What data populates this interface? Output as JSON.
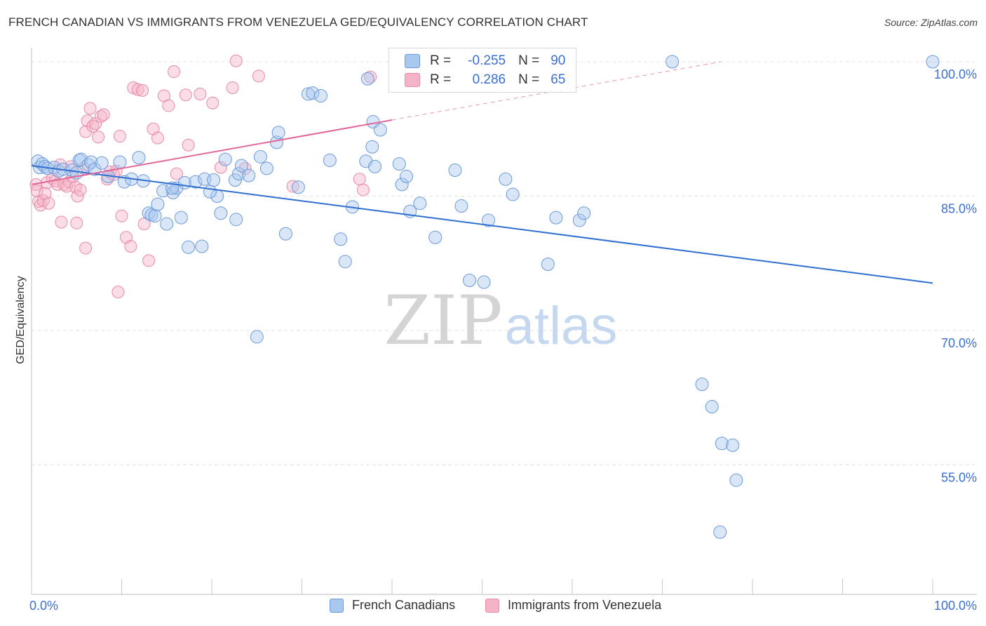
{
  "title": "FRENCH CANADIAN VS IMMIGRANTS FROM VENEZUELA GED/EQUIVALENCY CORRELATION CHART",
  "source": "Source: ZipAtlas.com",
  "watermark": {
    "zip": "ZIP",
    "atlas": "atlas"
  },
  "legend": {
    "rows": [
      {
        "r_label": "R =",
        "r_value": "-0.255",
        "n_label": "N =",
        "n_value": "90"
      },
      {
        "r_label": "R =",
        "r_value": "0.286",
        "n_label": "N =",
        "n_value": "65"
      }
    ]
  },
  "bottom_legend": [
    "French Canadians",
    "Immigrants from Venezuela"
  ],
  "colors": {
    "blue_fill": "#a9c8f0",
    "blue_stroke": "#6b9ad8",
    "blue_line": "#2f6fd1",
    "pink_fill": "#f5b3c8",
    "pink_stroke": "#e98aa8",
    "pink_line": "#e0689a",
    "tick_label": "#3b6fd4"
  },
  "chart_data": {
    "type": "scatter",
    "title": "FRENCH CANADIAN VS IMMIGRANTS FROM VENEZUELA GED/EQUIVALENCY CORRELATION CHART",
    "xlabel": "",
    "ylabel": "GED/Equivalency",
    "xlim": [
      0,
      100
    ],
    "ylim": [
      40,
      101.5
    ],
    "x_tick_labels": [
      "0.0%",
      "100.0%"
    ],
    "y_ticks": [
      55,
      70,
      85,
      100
    ],
    "y_tick_labels": [
      "55.0%",
      "70.0%",
      "85.0%",
      "100.0%"
    ],
    "series": [
      {
        "name": "French Canadians",
        "r": -0.255,
        "n": 90,
        "trend": {
          "x": [
            0,
            100
          ],
          "y": [
            88.4,
            75.3
          ]
        },
        "points": [
          [
            0.7,
            88.9
          ],
          [
            0.9,
            88.2
          ],
          [
            1.2,
            88.6
          ],
          [
            1.5,
            88.3
          ],
          [
            1.8,
            88.1
          ],
          [
            2.5,
            88.2
          ],
          [
            3.0,
            87.8
          ],
          [
            3.5,
            88.0
          ],
          [
            4.5,
            87.9
          ],
          [
            5.0,
            87.6
          ],
          [
            5.3,
            89.0
          ],
          [
            5.5,
            89.1
          ],
          [
            6.3,
            88.5
          ],
          [
            6.6,
            88.8
          ],
          [
            7.0,
            88.0
          ],
          [
            7.8,
            88.7
          ],
          [
            8.5,
            87.2
          ],
          [
            9.8,
            88.8
          ],
          [
            10.3,
            86.6
          ],
          [
            11.1,
            86.9
          ],
          [
            11.9,
            89.3
          ],
          [
            12.4,
            86.7
          ],
          [
            13.0,
            83.1
          ],
          [
            13.3,
            82.9
          ],
          [
            13.7,
            82.8
          ],
          [
            14.0,
            84.1
          ],
          [
            14.6,
            85.6
          ],
          [
            15.7,
            85.4
          ],
          [
            16.1,
            85.9
          ],
          [
            17.0,
            86.5
          ],
          [
            18.2,
            86.6
          ],
          [
            19.2,
            86.9
          ],
          [
            20.2,
            86.8
          ],
          [
            20.6,
            85.0
          ],
          [
            21.0,
            83.1
          ],
          [
            21.5,
            89.1
          ],
          [
            22.6,
            86.8
          ],
          [
            23.0,
            87.5
          ],
          [
            23.3,
            88.4
          ],
          [
            24.1,
            87.3
          ],
          [
            25.4,
            89.4
          ],
          [
            26.1,
            88.1
          ],
          [
            27.2,
            91.0
          ],
          [
            27.4,
            92.1
          ],
          [
            28.2,
            80.8
          ],
          [
            29.6,
            86.0
          ],
          [
            30.7,
            96.4
          ],
          [
            31.2,
            96.5
          ],
          [
            32.1,
            96.2
          ],
          [
            33.1,
            89.0
          ],
          [
            34.3,
            80.2
          ],
          [
            34.8,
            77.7
          ],
          [
            35.6,
            83.8
          ],
          [
            37.1,
            88.9
          ],
          [
            37.8,
            90.5
          ],
          [
            37.9,
            93.3
          ],
          [
            37.3,
            98.1
          ],
          [
            38.1,
            88.3
          ],
          [
            38.7,
            92.4
          ],
          [
            40.8,
            88.6
          ],
          [
            41.1,
            86.3
          ],
          [
            41.6,
            87.2
          ],
          [
            42.0,
            83.3
          ],
          [
            43.1,
            84.2
          ],
          [
            44.8,
            80.4
          ],
          [
            47.0,
            87.9
          ],
          [
            47.7,
            83.9
          ],
          [
            48.6,
            75.6
          ],
          [
            50.2,
            75.4
          ],
          [
            50.7,
            82.3
          ],
          [
            53.4,
            85.2
          ],
          [
            52.6,
            86.9
          ],
          [
            57.3,
            77.4
          ],
          [
            58.2,
            82.6
          ],
          [
            60.8,
            82.3
          ],
          [
            61.3,
            83.1
          ],
          [
            71.1,
            100.0
          ],
          [
            100.0,
            100.0
          ],
          [
            74.4,
            64.0
          ],
          [
            75.5,
            61.5
          ],
          [
            76.6,
            57.4
          ],
          [
            77.8,
            57.2
          ],
          [
            78.2,
            53.3
          ],
          [
            76.4,
            47.5
          ],
          [
            17.4,
            79.3
          ],
          [
            15.0,
            81.9
          ],
          [
            15.6,
            85.9
          ],
          [
            19.8,
            85.5
          ],
          [
            22.7,
            82.4
          ],
          [
            16.6,
            82.6
          ],
          [
            18.9,
            79.4
          ],
          [
            25.0,
            69.3
          ]
        ]
      },
      {
        "name": "Immigrants from Venezuela",
        "r": 0.286,
        "n": 65,
        "trend": {
          "x": [
            0,
            40
          ],
          "y": [
            86.3,
            93.5
          ]
        },
        "trend_ext": {
          "x": [
            40,
            76.5
          ],
          "y": [
            93.5,
            100.0
          ]
        },
        "points": [
          [
            0.5,
            86.3
          ],
          [
            0.6,
            85.6
          ],
          [
            0.8,
            84.4
          ],
          [
            1.0,
            84.0
          ],
          [
            1.3,
            84.5
          ],
          [
            1.5,
            85.3
          ],
          [
            1.7,
            86.5
          ],
          [
            1.9,
            84.2
          ],
          [
            2.3,
            87.0
          ],
          [
            2.6,
            86.7
          ],
          [
            2.9,
            86.3
          ],
          [
            3.2,
            88.5
          ],
          [
            3.6,
            86.3
          ],
          [
            3.9,
            86.1
          ],
          [
            4.2,
            86.6
          ],
          [
            4.4,
            88.3
          ],
          [
            4.6,
            87.2
          ],
          [
            4.9,
            86.0
          ],
          [
            5.1,
            85.0
          ],
          [
            5.4,
            85.7
          ],
          [
            5.8,
            88.1
          ],
          [
            6.0,
            92.2
          ],
          [
            6.2,
            93.4
          ],
          [
            6.5,
            94.8
          ],
          [
            6.8,
            92.8
          ],
          [
            7.1,
            93.1
          ],
          [
            7.4,
            91.6
          ],
          [
            7.7,
            93.9
          ],
          [
            8.0,
            94.1
          ],
          [
            8.4,
            86.9
          ],
          [
            8.7,
            87.7
          ],
          [
            9.1,
            87.4
          ],
          [
            9.4,
            87.8
          ],
          [
            9.8,
            91.7
          ],
          [
            10.0,
            82.8
          ],
          [
            10.5,
            80.4
          ],
          [
            11.0,
            79.4
          ],
          [
            11.3,
            97.1
          ],
          [
            11.8,
            96.9
          ],
          [
            12.3,
            96.8
          ],
          [
            12.5,
            81.9
          ],
          [
            13.0,
            77.8
          ],
          [
            13.5,
            92.5
          ],
          [
            14.0,
            91.5
          ],
          [
            14.7,
            96.2
          ],
          [
            15.2,
            95.1
          ],
          [
            15.8,
            98.9
          ],
          [
            16.1,
            87.5
          ],
          [
            17.4,
            90.7
          ],
          [
            17.1,
            96.3
          ],
          [
            18.7,
            96.4
          ],
          [
            20.1,
            95.4
          ],
          [
            22.3,
            97.1
          ],
          [
            21.0,
            88.2
          ],
          [
            22.7,
            100.1
          ],
          [
            23.7,
            88.1
          ],
          [
            25.2,
            98.4
          ],
          [
            29.0,
            86.1
          ],
          [
            37.6,
            98.3
          ],
          [
            36.4,
            86.9
          ],
          [
            36.8,
            85.7
          ],
          [
            6.0,
            79.2
          ],
          [
            5.0,
            82.0
          ],
          [
            9.6,
            74.3
          ],
          [
            3.3,
            82.1
          ]
        ]
      }
    ]
  }
}
